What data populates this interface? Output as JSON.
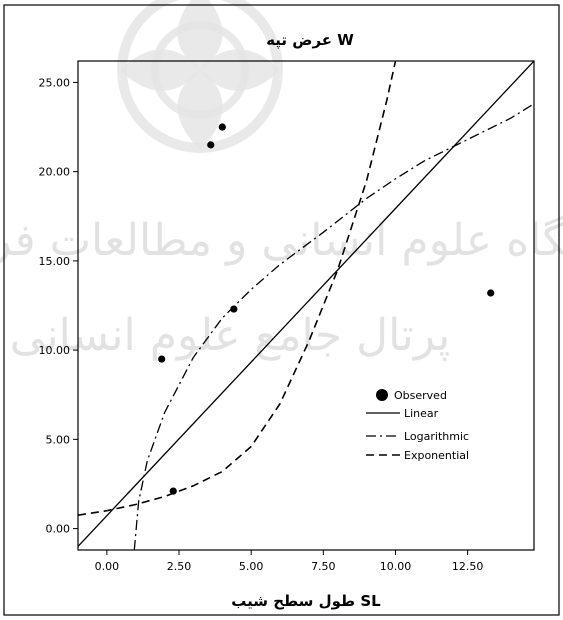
{
  "chart_data": {
    "type": "scatter",
    "title": "عرض تپه W",
    "xlabel": "طول سطح شیب SL",
    "ylabel": "",
    "xlim": [
      -1.0,
      14.8
    ],
    "ylim": [
      -1.2,
      26.2
    ],
    "x_ticks": [
      {
        "value": 0.0,
        "label": "0.00"
      },
      {
        "value": 2.5,
        "label": "2.50"
      },
      {
        "value": 5.0,
        "label": "5.00"
      },
      {
        "value": 7.5,
        "label": "7.50"
      },
      {
        "value": 10.0,
        "label": "10.00"
      },
      {
        "value": 12.5,
        "label": "12.50"
      }
    ],
    "y_ticks": [
      {
        "value": 0.0,
        "label": "0.00"
      },
      {
        "value": 5.0,
        "label": "5.00"
      },
      {
        "value": 10.0,
        "label": "10.00"
      },
      {
        "value": 15.0,
        "label": "15.00"
      },
      {
        "value": 20.0,
        "label": "20.00"
      },
      {
        "value": 25.0,
        "label": "25.00"
      }
    ],
    "grid": false,
    "legend_position": "right-middle",
    "observed": {
      "name": "Observed",
      "points": [
        {
          "x": 1.9,
          "y": 9.5
        },
        {
          "x": 2.3,
          "y": 2.1
        },
        {
          "x": 3.6,
          "y": 21.5
        },
        {
          "x": 4.0,
          "y": 22.5
        },
        {
          "x": 4.4,
          "y": 12.3
        },
        {
          "x": 13.3,
          "y": 13.2
        }
      ]
    },
    "fits": [
      {
        "name": "Linear",
        "style": "solid",
        "points": [
          {
            "x": -1.0,
            "y": -1.0
          },
          {
            "x": 14.8,
            "y": 26.2
          }
        ]
      },
      {
        "name": "Logarithmic",
        "style": "dash-dot",
        "points": [
          {
            "x": 0.95,
            "y": -1.2
          },
          {
            "x": 1.1,
            "y": 1.5
          },
          {
            "x": 1.4,
            "y": 3.8
          },
          {
            "x": 2.0,
            "y": 6.5
          },
          {
            "x": 3.0,
            "y": 9.6
          },
          {
            "x": 4.0,
            "y": 11.8
          },
          {
            "x": 5.0,
            "y": 13.4
          },
          {
            "x": 6.0,
            "y": 14.8
          },
          {
            "x": 7.5,
            "y": 16.6
          },
          {
            "x": 9.0,
            "y": 18.5
          },
          {
            "x": 10.0,
            "y": 19.6
          },
          {
            "x": 11.0,
            "y": 20.6
          },
          {
            "x": 12.5,
            "y": 21.8
          },
          {
            "x": 14.0,
            "y": 23.0
          },
          {
            "x": 14.8,
            "y": 23.8
          }
        ]
      },
      {
        "name": "Exponential",
        "style": "dashed",
        "points": [
          {
            "x": -1.0,
            "y": 0.75
          },
          {
            "x": 0.0,
            "y": 1.0
          },
          {
            "x": 1.0,
            "y": 1.35
          },
          {
            "x": 2.0,
            "y": 1.8
          },
          {
            "x": 3.0,
            "y": 2.4
          },
          {
            "x": 4.0,
            "y": 3.2
          },
          {
            "x": 5.0,
            "y": 4.6
          },
          {
            "x": 6.0,
            "y": 7.0
          },
          {
            "x": 7.0,
            "y": 10.5
          },
          {
            "x": 8.0,
            "y": 14.5
          },
          {
            "x": 9.0,
            "y": 19.5
          },
          {
            "x": 9.7,
            "y": 24.0
          },
          {
            "x": 10.0,
            "y": 26.2
          }
        ]
      }
    ]
  },
  "watermark": {
    "line1": "پژوهشگاه علوم انسانی و مطالعات فرهنگی",
    "line2": "پرتال جامع علوم انسانی"
  },
  "colors": {
    "axis": "#000000",
    "series": "#000000",
    "watermark": "#d9d9d9",
    "background": "#ffffff"
  }
}
